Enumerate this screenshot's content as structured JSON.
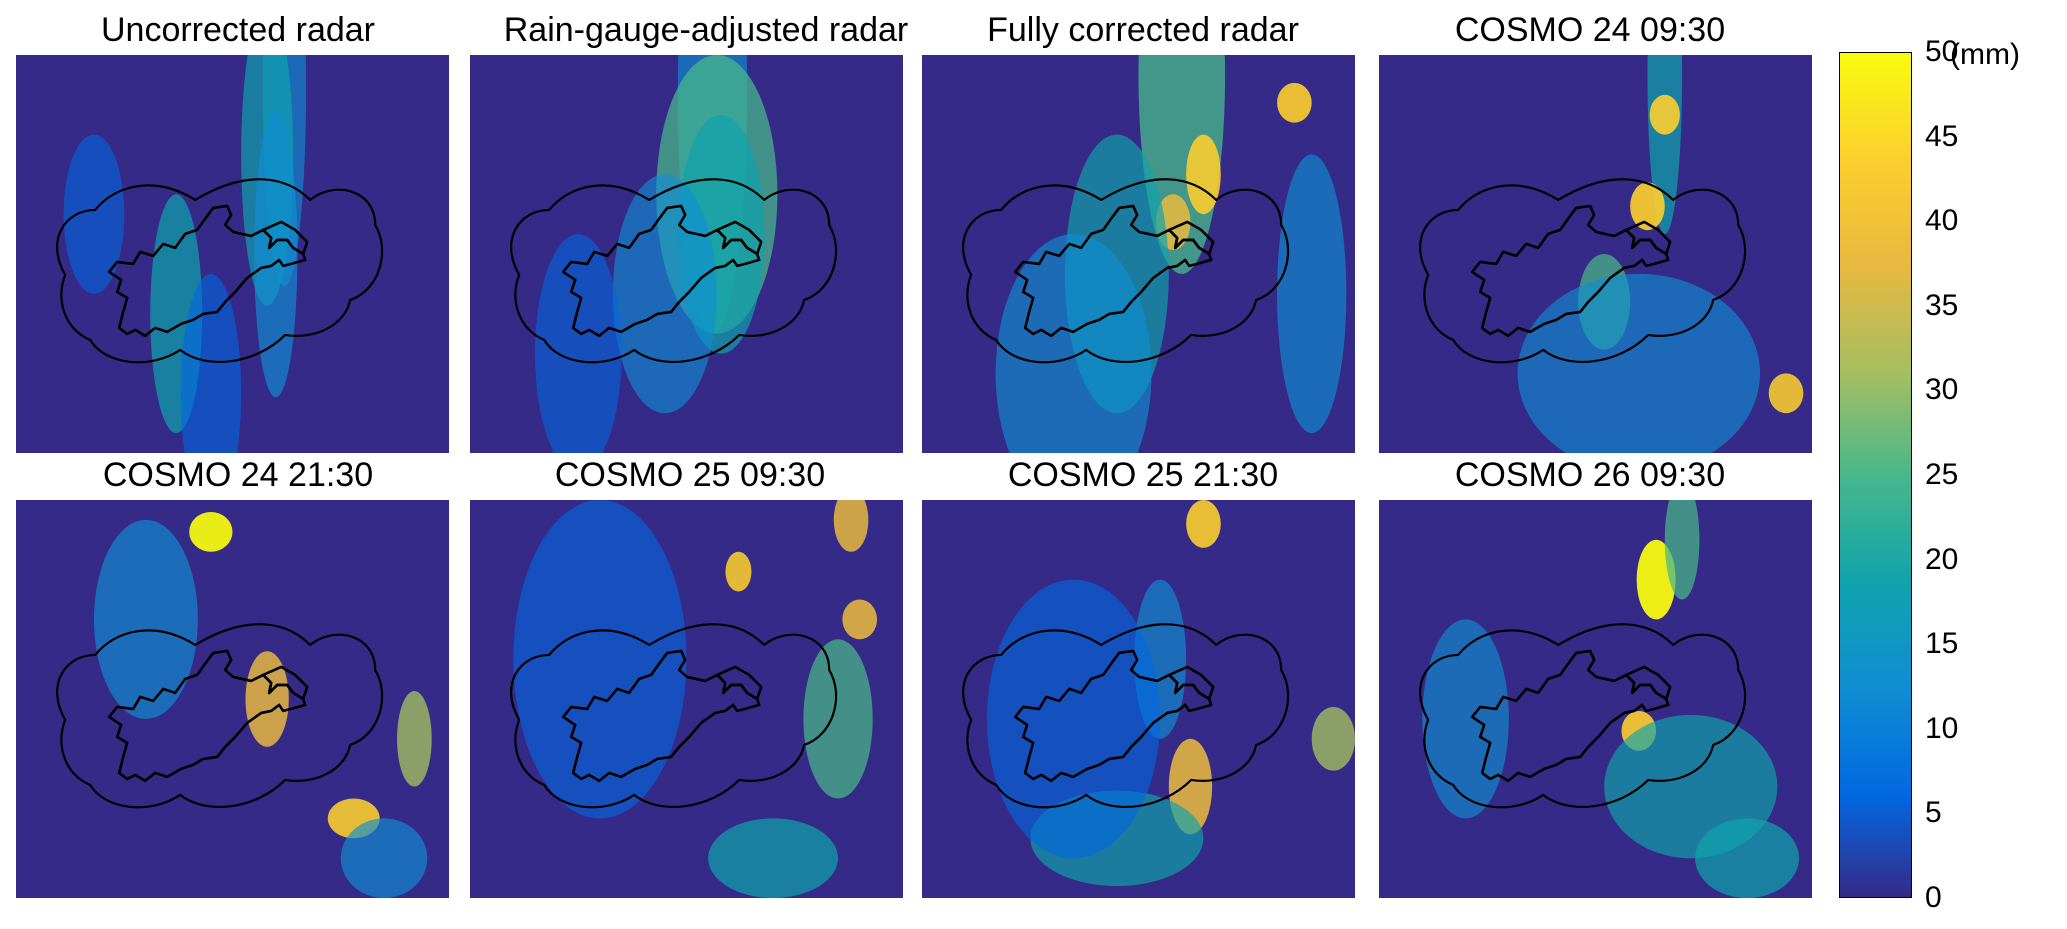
{
  "panels": [
    {
      "title": "Uncorrected radar",
      "cells": [
        [
          0.62,
          0.08,
          0.05,
          0.5,
          0.24,
          0.16,
          0.4
        ],
        [
          0.58,
          0.25,
          0.06,
          0.38,
          0.34,
          0.14,
          0.36
        ],
        [
          0.6,
          0.5,
          0.05,
          0.36,
          0.3,
          0.12,
          0.34
        ],
        [
          0.37,
          0.65,
          0.06,
          0.3,
          0.42,
          0.16,
          0.4
        ],
        [
          0.18,
          0.4,
          0.07,
          0.2,
          0.13,
          0.1,
          0.2
        ],
        [
          0.45,
          0.85,
          0.07,
          0.3,
          0.14,
          0.08,
          0.28
        ]
      ]
    },
    {
      "title": "Rain-gauge-adjusted radar",
      "cells": [
        [
          0.56,
          0.1,
          0.08,
          0.6,
          0.26,
          0.2,
          0.45
        ],
        [
          0.57,
          0.35,
          0.14,
          0.35,
          0.48,
          0.2,
          0.5
        ],
        [
          0.58,
          0.45,
          0.1,
          0.3,
          0.36,
          0.11,
          0.38
        ],
        [
          0.45,
          0.6,
          0.12,
          0.3,
          0.2,
          0.12,
          0.36
        ],
        [
          0.25,
          0.75,
          0.1,
          0.3,
          0.12,
          0.08,
          0.24
        ]
      ]
    },
    {
      "title": "Fully corrected radar",
      "cells": [
        [
          0.6,
          0.05,
          0.1,
          0.5,
          0.55,
          0.18,
          0.6
        ],
        [
          0.86,
          0.12,
          0.04,
          0.05,
          0.9,
          0.2,
          0.9
        ],
        [
          0.65,
          0.3,
          0.04,
          0.1,
          0.85,
          0.2,
          0.9
        ],
        [
          0.58,
          0.42,
          0.04,
          0.07,
          0.78,
          0.15,
          0.8
        ],
        [
          0.45,
          0.55,
          0.12,
          0.35,
          0.32,
          0.16,
          0.44
        ],
        [
          0.35,
          0.8,
          0.18,
          0.35,
          0.22,
          0.12,
          0.34
        ],
        [
          0.9,
          0.6,
          0.08,
          0.35,
          0.26,
          0.15,
          0.36
        ]
      ]
    },
    {
      "title": "COSMO 24 09:30",
      "cells": [
        [
          0.66,
          0.05,
          0.04,
          0.4,
          0.4,
          0.14,
          0.5
        ],
        [
          0.66,
          0.15,
          0.035,
          0.05,
          0.88,
          0.2,
          0.9
        ],
        [
          0.62,
          0.38,
          0.04,
          0.06,
          0.92,
          0.2,
          0.95
        ],
        [
          0.52,
          0.62,
          0.06,
          0.12,
          0.45,
          0.12,
          0.46
        ],
        [
          0.94,
          0.85,
          0.04,
          0.05,
          0.82,
          0.15,
          0.85
        ],
        [
          0.6,
          0.8,
          0.28,
          0.25,
          0.2,
          0.12,
          0.3
        ]
      ]
    },
    {
      "title": "COSMO 24 21:30",
      "cells": [
        [
          0.45,
          0.08,
          0.05,
          0.05,
          0.95,
          0.3,
          0.95
        ],
        [
          0.3,
          0.3,
          0.12,
          0.25,
          0.3,
          0.18,
          0.36
        ],
        [
          0.58,
          0.5,
          0.05,
          0.12,
          0.72,
          0.18,
          0.78
        ],
        [
          0.78,
          0.8,
          0.06,
          0.05,
          0.85,
          0.15,
          0.9
        ],
        [
          0.92,
          0.6,
          0.04,
          0.12,
          0.6,
          0.12,
          0.66
        ],
        [
          0.85,
          0.9,
          0.1,
          0.1,
          0.3,
          0.12,
          0.36
        ]
      ]
    },
    {
      "title": "COSMO 25 09:30",
      "cells": [
        [
          0.62,
          0.18,
          0.03,
          0.05,
          0.82,
          0.15,
          0.86
        ],
        [
          0.9,
          0.3,
          0.04,
          0.05,
          0.8,
          0.15,
          0.84
        ],
        [
          0.88,
          0.05,
          0.04,
          0.08,
          0.75,
          0.15,
          0.8
        ],
        [
          0.85,
          0.55,
          0.08,
          0.2,
          0.45,
          0.1,
          0.5
        ],
        [
          0.7,
          0.9,
          0.15,
          0.1,
          0.4,
          0.12,
          0.46
        ],
        [
          0.3,
          0.4,
          0.2,
          0.4,
          0.15,
          0.08,
          0.24
        ]
      ]
    },
    {
      "title": "COSMO 25 21:30",
      "cells": [
        [
          0.65,
          0.06,
          0.04,
          0.06,
          0.88,
          0.2,
          0.9
        ],
        [
          0.62,
          0.72,
          0.05,
          0.12,
          0.8,
          0.18,
          0.86
        ],
        [
          0.55,
          0.4,
          0.06,
          0.2,
          0.3,
          0.1,
          0.38
        ],
        [
          0.95,
          0.6,
          0.05,
          0.08,
          0.6,
          0.12,
          0.66
        ],
        [
          0.45,
          0.85,
          0.2,
          0.12,
          0.32,
          0.1,
          0.38
        ],
        [
          0.35,
          0.55,
          0.2,
          0.35,
          0.16,
          0.08,
          0.24
        ]
      ]
    },
    {
      "title": "COSMO 26 09:30",
      "cells": [
        [
          0.64,
          0.2,
          0.045,
          0.1,
          0.98,
          0.2,
          0.98
        ],
        [
          0.6,
          0.58,
          0.04,
          0.05,
          0.9,
          0.18,
          0.9
        ],
        [
          0.72,
          0.72,
          0.2,
          0.18,
          0.32,
          0.12,
          0.38
        ],
        [
          0.85,
          0.9,
          0.12,
          0.1,
          0.4,
          0.12,
          0.46
        ],
        [
          0.7,
          0.1,
          0.04,
          0.15,
          0.45,
          0.12,
          0.5
        ],
        [
          0.2,
          0.55,
          0.1,
          0.25,
          0.22,
          0.08,
          0.28
        ]
      ]
    }
  ],
  "colorbar": {
    "ticks": [
      "0",
      "5",
      "10",
      "15",
      "20",
      "25",
      "30",
      "35",
      "40",
      "45",
      "50"
    ],
    "top_label": "50",
    "unit": "(mm)",
    "colors": [
      "#352a87",
      "#0268e1",
      "#108ed2",
      "#0fa3ad",
      "#48b78b",
      "#a5be61",
      "#e8b940",
      "#fcce2e",
      "#f9fb0e"
    ]
  },
  "chart_data": {
    "type": "heatmap",
    "titles": [
      "Uncorrected radar",
      "Rain-gauge-adjusted radar",
      "Fully corrected radar",
      "COSMO 24 09:30",
      "COSMO 24 21:30",
      "COSMO 25 09:30",
      "COSMO 25 21:30",
      "COSMO 26 09:30"
    ],
    "colorbar_label": "(mm)",
    "colorbar_range": [
      0,
      50
    ],
    "colorbar_ticks": [
      0,
      5,
      10,
      15,
      20,
      25,
      30,
      35,
      40,
      45,
      50
    ]
  }
}
